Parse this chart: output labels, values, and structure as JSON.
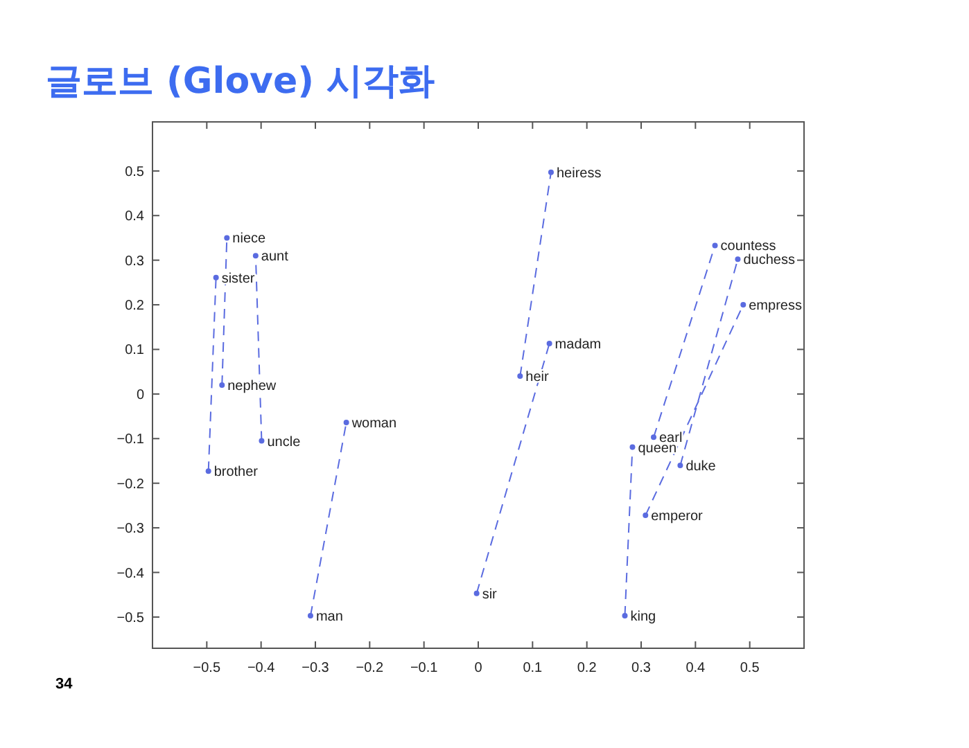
{
  "chart_data": {
    "type": "line",
    "title": "글로브 (Glove) 시각화",
    "xlim": [
      -0.6,
      0.6
    ],
    "ylim": [
      -0.57,
      0.61
    ],
    "xticks": [
      -0.5,
      -0.4,
      -0.3,
      -0.2,
      -0.1,
      0,
      0.1,
      0.2,
      0.3,
      0.4,
      0.5
    ],
    "yticks": [
      -0.5,
      -0.4,
      -0.3,
      -0.2,
      -0.1,
      0,
      0.1,
      0.2,
      0.3,
      0.4,
      0.5
    ],
    "line_style": "dashed",
    "marker": "circle",
    "series": [
      {
        "color": "#5a6be0",
        "x": [
          -0.497,
          -0.483
        ],
        "values": [
          -0.173,
          0.261
        ]
      },
      {
        "color": "#5a6be0",
        "x": [
          -0.472,
          -0.463
        ],
        "values": [
          0.02,
          0.35
        ]
      },
      {
        "color": "#5a6be0",
        "x": [
          -0.399,
          -0.41
        ],
        "values": [
          -0.105,
          0.31
        ]
      },
      {
        "color": "#5a6be0",
        "x": [
          -0.309,
          -0.243
        ],
        "values": [
          -0.497,
          -0.064
        ]
      },
      {
        "color": "#5a6be0",
        "x": [
          -0.003,
          0.131
        ],
        "values": [
          -0.447,
          0.113
        ]
      },
      {
        "color": "#5a6be0",
        "x": [
          0.077,
          0.134
        ],
        "values": [
          0.04,
          0.497
        ]
      },
      {
        "color": "#5a6be0",
        "x": [
          0.27,
          0.284
        ],
        "values": [
          -0.497,
          -0.119
        ]
      },
      {
        "color": "#5a6be0",
        "x": [
          0.323,
          0.436
        ],
        "values": [
          -0.097,
          0.333
        ]
      },
      {
        "color": "#5a6be0",
        "x": [
          0.372,
          0.478
        ],
        "values": [
          -0.16,
          0.302
        ]
      },
      {
        "color": "#5a6be0",
        "x": [
          0.308,
          0.488
        ],
        "values": [
          -0.272,
          0.2
        ]
      }
    ],
    "annotations": [
      {
        "text": "brother",
        "x": -0.497,
        "y": -0.173
      },
      {
        "text": "sister",
        "x": -0.483,
        "y": 0.261
      },
      {
        "text": "nephew",
        "x": -0.472,
        "y": 0.02
      },
      {
        "text": "niece",
        "x": -0.463,
        "y": 0.35
      },
      {
        "text": "uncle",
        "x": -0.399,
        "y": -0.105
      },
      {
        "text": "aunt",
        "x": -0.41,
        "y": 0.31
      },
      {
        "text": "man",
        "x": -0.309,
        "y": -0.497
      },
      {
        "text": "woman",
        "x": -0.243,
        "y": -0.064
      },
      {
        "text": "sir",
        "x": -0.003,
        "y": -0.447
      },
      {
        "text": "madam",
        "x": 0.131,
        "y": 0.113
      },
      {
        "text": "heir",
        "x": 0.077,
        "y": 0.04
      },
      {
        "text": "heiress",
        "x": 0.134,
        "y": 0.497
      },
      {
        "text": "king",
        "x": 0.27,
        "y": -0.497
      },
      {
        "text": "queen",
        "x": 0.284,
        "y": -0.119
      },
      {
        "text": "earl",
        "x": 0.323,
        "y": -0.097
      },
      {
        "text": "countess",
        "x": 0.436,
        "y": 0.333
      },
      {
        "text": "duke",
        "x": 0.372,
        "y": -0.16
      },
      {
        "text": "duchess",
        "x": 0.478,
        "y": 0.302
      },
      {
        "text": "emperor",
        "x": 0.308,
        "y": -0.272
      },
      {
        "text": "empress",
        "x": 0.488,
        "y": 0.2
      },
      "34"
    ]
  }
}
